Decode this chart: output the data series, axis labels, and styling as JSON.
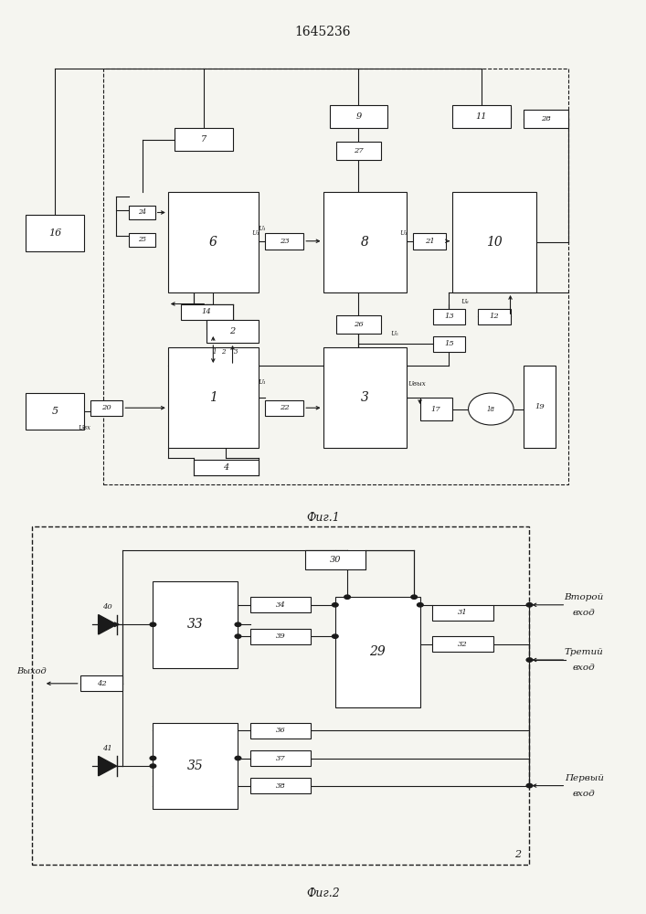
{
  "title": "1645236",
  "fig1_caption": "Фиг.1",
  "fig2_caption": "Фиг.2",
  "bg_color": "#f5f5f0",
  "line_color": "#1a1a1a",
  "box_color": "#ffffff",
  "text_color": "#1a1a1a"
}
